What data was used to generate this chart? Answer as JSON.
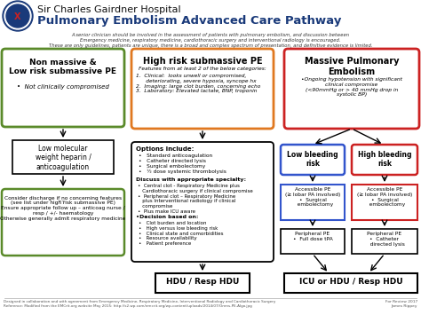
{
  "title1": "Sir Charles Gairdner Hospital",
  "title2": "Pulmonary Embolism Advanced Care Pathway",
  "subtitle": "A senior clinician should be involved in the assessment of patients with pulmonary embolism, and discussion between\nEmergency medicine, respiratory medicine, cardiothoracic surgery and interventional radiology is encouraged.\nThese are only guidelines, patients are unique, there is a broad and complex spectrum of presentation, and definitive evidence is limited.",
  "footer": "Designed in collaboration and with agreement from Emergency Medicine, Respiratory Medicine, Interventional Radiology and Cardiothoracic Surgery\nReference: Modified from the EMCrit.org website May 2015: http://s2.wp.com/emcrit.org/wp-content/uploads/2014/07/Orens-PE-Algo.jpg",
  "footer_right": "For Review 2017\nJames Rippey",
  "bg_color": "#ffffff",
  "box_green": "#5a8a2a",
  "box_orange": "#e07820",
  "box_red": "#cc2222",
  "box_blue": "#3355cc",
  "box_dark": "#111111"
}
